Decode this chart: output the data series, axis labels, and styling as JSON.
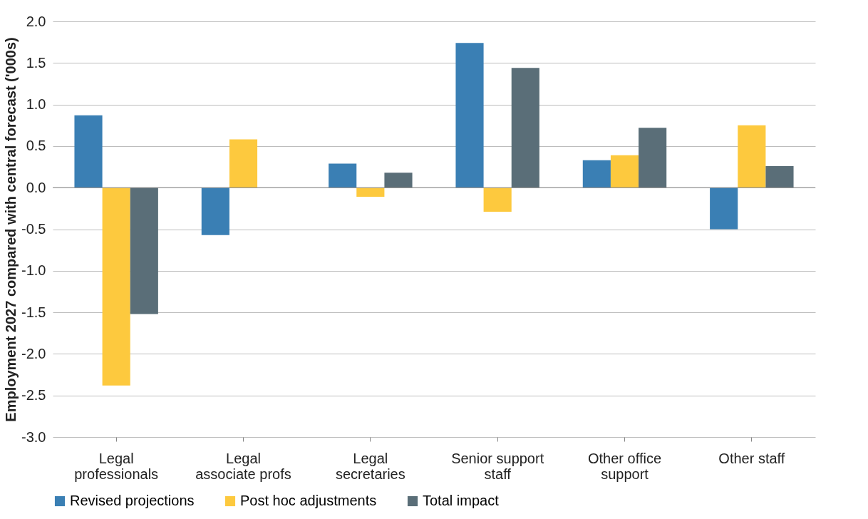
{
  "chart_data": {
    "type": "bar",
    "ylabel": "Employment 2027 compared with central forecast ('000s)",
    "categories": [
      "Legal\nprofessionals",
      "Legal\nassociate profs",
      "Legal\nsecretaries",
      "Senior support\nstaff",
      "Other office\nsupport",
      "Other staff"
    ],
    "series": [
      {
        "name": "Revised projections",
        "color": "#3a7fb4",
        "values": [
          0.87,
          -0.57,
          0.29,
          1.74,
          0.33,
          -0.5
        ]
      },
      {
        "name": "Post hoc adjustments",
        "color": "#fdc93e",
        "values": [
          -2.38,
          0.58,
          -0.11,
          -0.29,
          0.39,
          0.75
        ]
      },
      {
        "name": "Total impact",
        "color": "#5a6e78",
        "values": [
          -1.52,
          0.0,
          0.18,
          1.44,
          0.72,
          0.26
        ]
      }
    ],
    "ylim": [
      -3,
      2
    ],
    "yticks": [
      {
        "value": -3,
        "label": "-3.0"
      },
      {
        "value": -2.5,
        "label": "-2.5"
      },
      {
        "value": -2,
        "label": "-2.0"
      },
      {
        "value": -1.5,
        "label": "-1.5"
      },
      {
        "value": -1,
        "label": "-1.0"
      },
      {
        "value": -0.5,
        "label": "-0.5"
      },
      {
        "value": 0,
        "label": "0.0"
      },
      {
        "value": 0.5,
        "label": "0.5"
      },
      {
        "value": 1,
        "label": "1.0"
      },
      {
        "value": 1.5,
        "label": "1.5"
      },
      {
        "value": 2,
        "label": "2.0"
      }
    ],
    "grid": "y",
    "legend": "bottom"
  }
}
